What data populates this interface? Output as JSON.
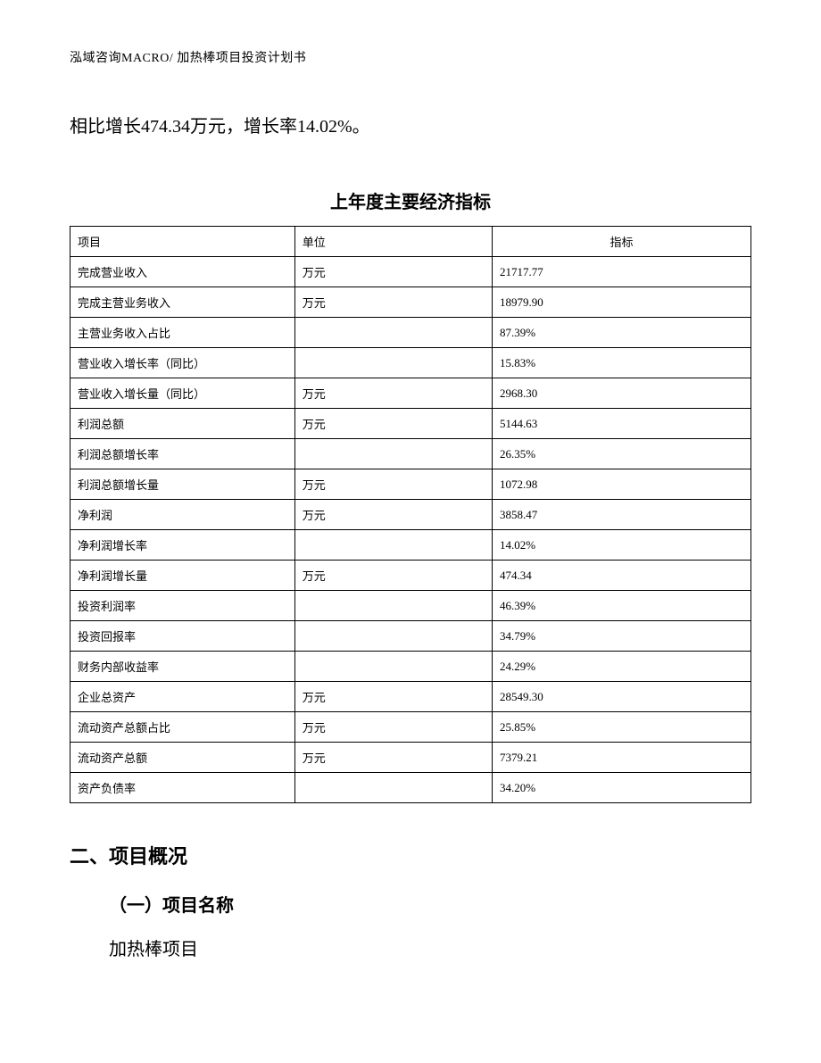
{
  "header": {
    "text": "泓域咨询MACRO/    加热棒项目投资计划书"
  },
  "paragraph": "相比增长474.34万元，增长率14.02%。",
  "table": {
    "title": "上年度主要经济指标",
    "columns": [
      "项目",
      "单位",
      "指标"
    ],
    "col_align": [
      "left",
      "left",
      "center"
    ],
    "col_widths_pct": [
      33,
      29,
      38
    ],
    "border_color": "#000000",
    "font_size_pt": 10,
    "rows": [
      {
        "name": "完成营业收入",
        "unit": "万元",
        "value": "21717.77"
      },
      {
        "name": "完成主营业务收入",
        "unit": "万元",
        "value": "18979.90"
      },
      {
        "name": "主营业务收入占比",
        "unit": "",
        "value": "87.39%"
      },
      {
        "name": "营业收入增长率（同比）",
        "unit": "",
        "value": "15.83%"
      },
      {
        "name": "营业收入增长量（同比）",
        "unit": "万元",
        "value": "2968.30"
      },
      {
        "name": "利润总额",
        "unit": "万元",
        "value": "5144.63"
      },
      {
        "name": "利润总额增长率",
        "unit": "",
        "value": "26.35%"
      },
      {
        "name": "利润总额增长量",
        "unit": "万元",
        "value": "1072.98"
      },
      {
        "name": "净利润",
        "unit": "万元",
        "value": "3858.47"
      },
      {
        "name": "净利润增长率",
        "unit": "",
        "value": "14.02%"
      },
      {
        "name": "净利润增长量",
        "unit": "万元",
        "value": "474.34"
      },
      {
        "name": "投资利润率",
        "unit": "",
        "value": "46.39%"
      },
      {
        "name": "投资回报率",
        "unit": "",
        "value": "34.79%"
      },
      {
        "name": "财务内部收益率",
        "unit": "",
        "value": "24.29%"
      },
      {
        "name": "企业总资产",
        "unit": "万元",
        "value": "28549.30"
      },
      {
        "name": "流动资产总额占比",
        "unit": "万元",
        "value": "25.85%"
      },
      {
        "name": "流动资产总额",
        "unit": "万元",
        "value": "7379.21"
      },
      {
        "name": "资产负债率",
        "unit": "",
        "value": "34.20%"
      }
    ]
  },
  "section": {
    "heading": "二、项目概况",
    "subsection_heading": "（一）项目名称",
    "project_name": "加热棒项目"
  }
}
